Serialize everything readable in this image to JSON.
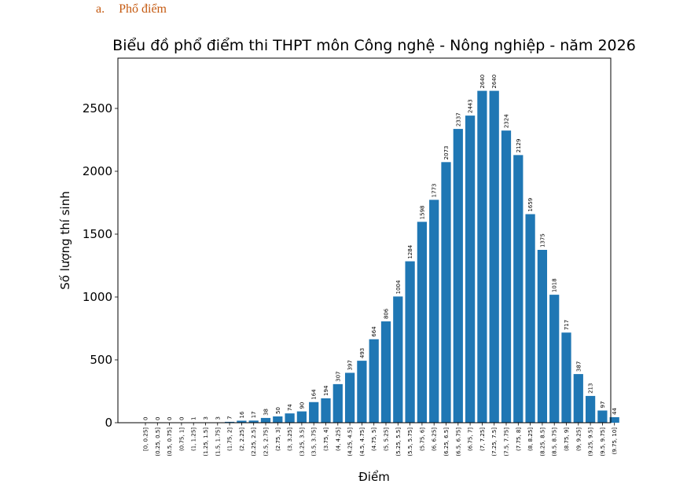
{
  "section_heading": {
    "marker": "a.",
    "text": "Phổ điểm"
  },
  "chart_data": {
    "type": "bar",
    "title": "Biểu đồ phổ điểm thi THPT môn Công nghệ - Nông nghiệp - năm 2026",
    "xlabel": "Điểm",
    "ylabel": "Số lượng thí sinh",
    "ylim": [
      0,
      2900
    ],
    "yticks": [
      0,
      500,
      1000,
      1500,
      2000,
      2500
    ],
    "grid": false,
    "bar_color": "#1f77b4",
    "categories": [
      "[0, 0.25]",
      "(0.25, 0.5]",
      "(0.5, 0.75]",
      "(0.75, 1]",
      "(1, 1.25]",
      "(1.25, 1.5]",
      "(1.5, 1.75]",
      "(1.75, 2]",
      "(2, 2.25]",
      "(2.25, 2.5]",
      "(2.5, 2.75]",
      "(2.75, 3]",
      "(3, 3.25]",
      "(3.25, 3.5]",
      "(3.5, 3.75]",
      "(3.75, 4]",
      "(4, 4.25]",
      "(4.25, 4.5]",
      "(4.5, 4.75]",
      "(4.75, 5]",
      "(5, 5.25]",
      "(5.25, 5.5]",
      "(5.5, 5.75]",
      "(5.75, 6]",
      "(6, 6.25]",
      "(6.25, 6.5]",
      "(6.5, 6.75]",
      "(6.75, 7]",
      "(7, 7.25]",
      "(7.25, 7.5]",
      "(7.5, 7.75]",
      "(7.75, 8]",
      "(8, 8.25]",
      "(8.25, 8.5]",
      "(8.5, 8.75]",
      "(8.75, 9]",
      "(9, 9.25]",
      "(9.25, 9.5]",
      "(9.5, 9.75]",
      "(9.75, 10]"
    ],
    "values": [
      0,
      0,
      0,
      0,
      1,
      3,
      3,
      7,
      16,
      17,
      38,
      50,
      74,
      90,
      164,
      194,
      307,
      397,
      493,
      664,
      806,
      1004,
      1284,
      1598,
      1773,
      2073,
      2337,
      2443,
      2640,
      2640,
      2324,
      2129,
      1659,
      1375,
      1018,
      717,
      387,
      213,
      97,
      44
    ]
  }
}
